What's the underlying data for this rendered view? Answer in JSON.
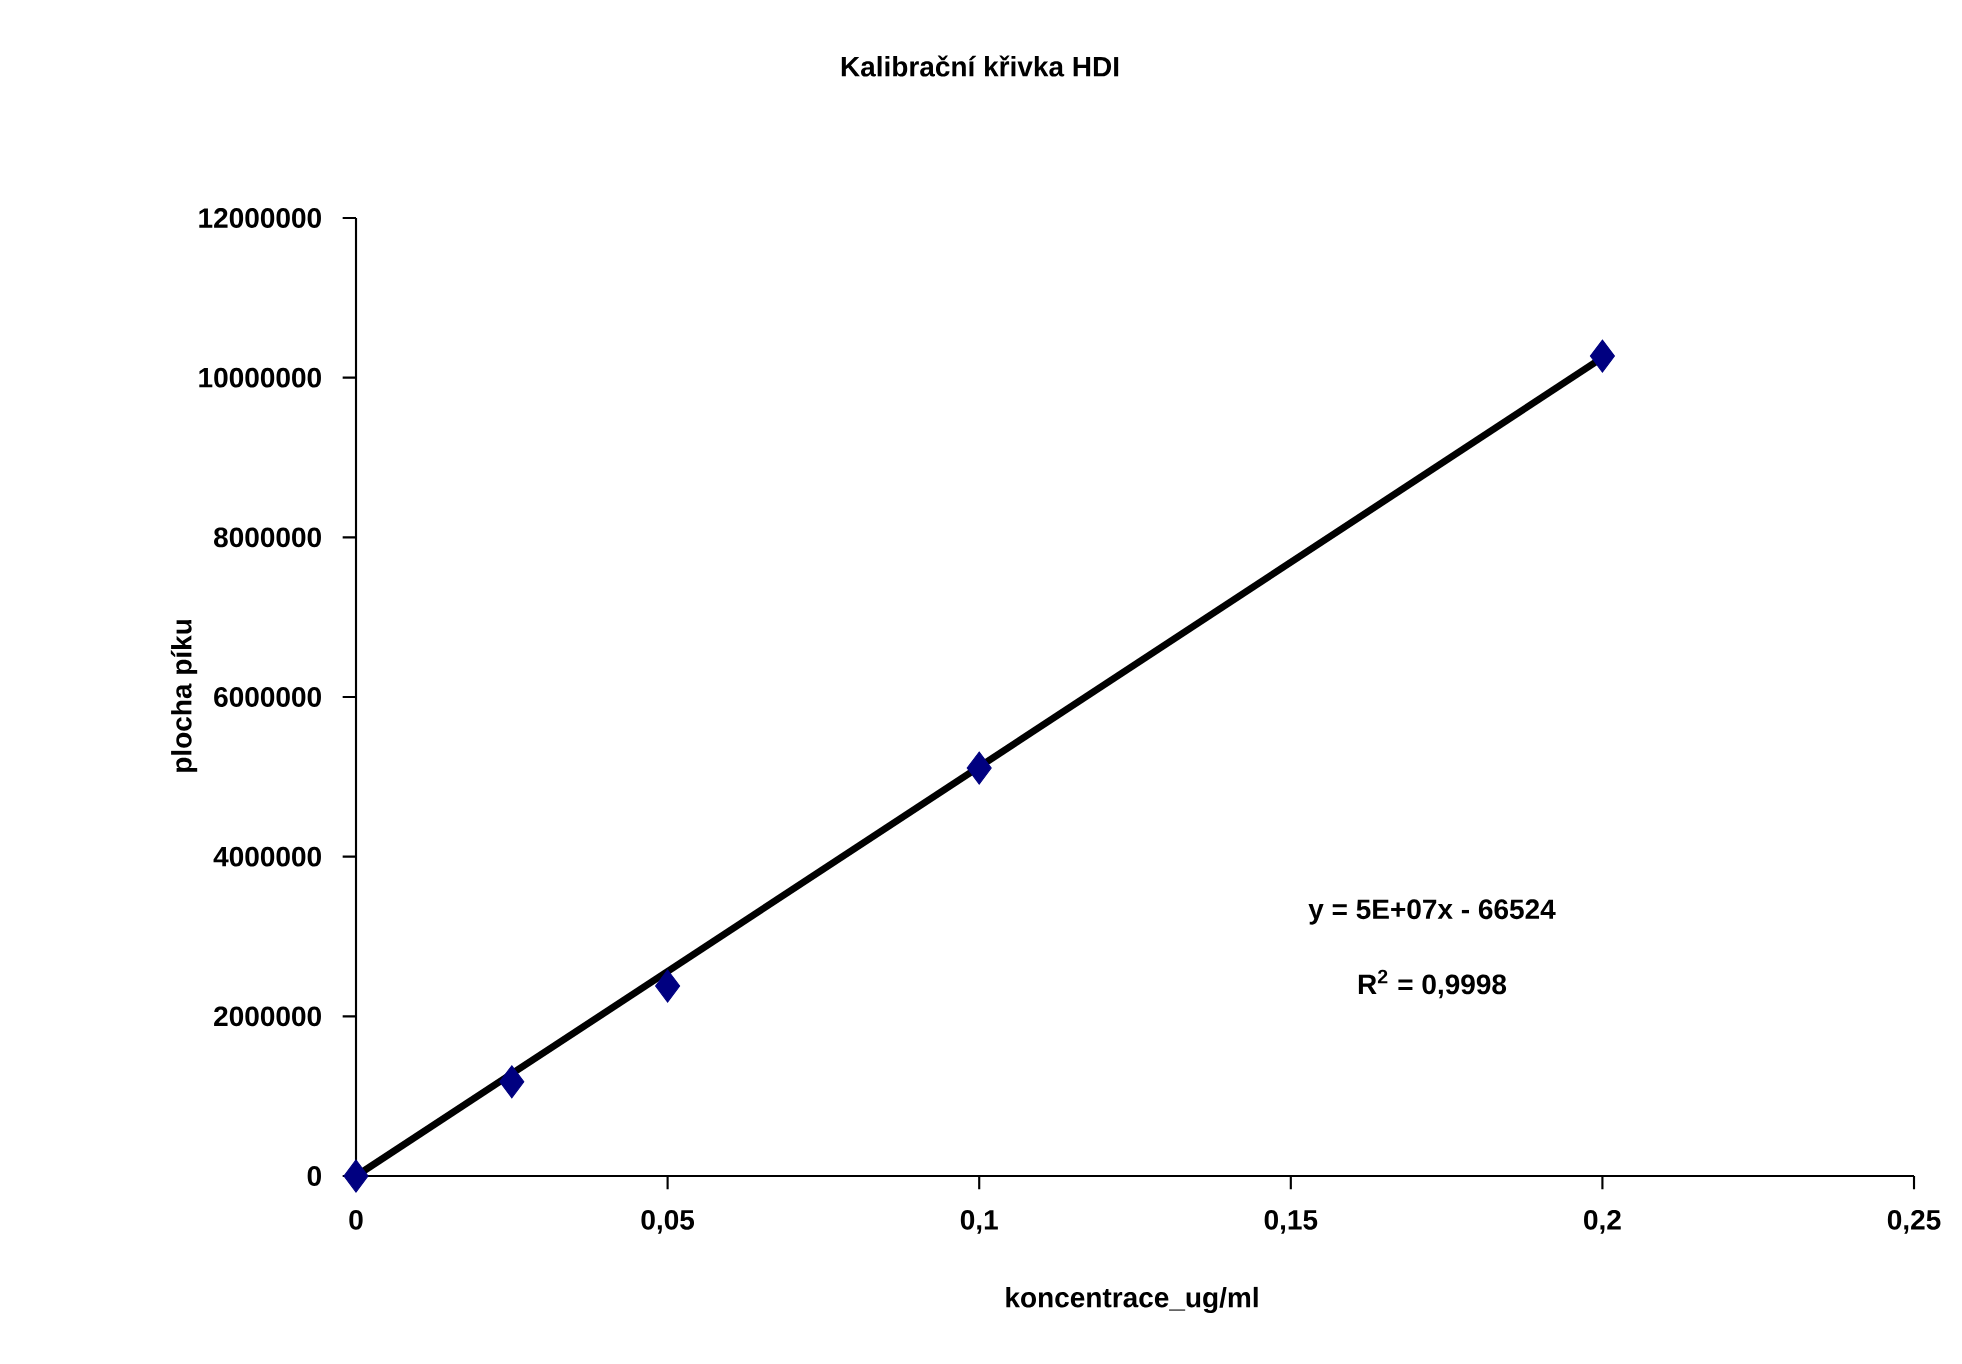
{
  "chart_data": {
    "type": "scatter",
    "title": "Kalibrační křivka HDI",
    "xlabel": "koncentrace_ug/ml",
    "ylabel": "plocha píku",
    "xlim": [
      0,
      0.25
    ],
    "xticks": [
      0,
      {
        "value": 0.05,
        "label": "0,05"
      },
      {
        "value": 0.1,
        "label": "0,1"
      },
      {
        "value": 0.15,
        "label": "0,15"
      },
      {
        "value": 0.2,
        "label": "0,2"
      },
      {
        "value": 0.25,
        "label": "0,25"
      }
    ],
    "ylim": [
      0,
      12000000
    ],
    "yticks": [
      0,
      2000000,
      4000000,
      6000000,
      8000000,
      10000000,
      12000000
    ],
    "series": [
      {
        "type": "line",
        "color": "#000000",
        "x": [
          0,
          0.2
        ],
        "values": [
          0,
          10250000
        ],
        "marker": "none",
        "line_style": "solid"
      },
      {
        "color": "#000080",
        "x": [
          0,
          0.025,
          0.05,
          0.1,
          0.2
        ],
        "values": [
          0,
          1180000,
          2380000,
          5110000,
          10270000
        ],
        "marker": "diamond"
      }
    ],
    "annotations": [
      "y = 5E+07x - 66524",
      "R$^{2}$ = 0,9998"
    ],
    "grid": false
  }
}
